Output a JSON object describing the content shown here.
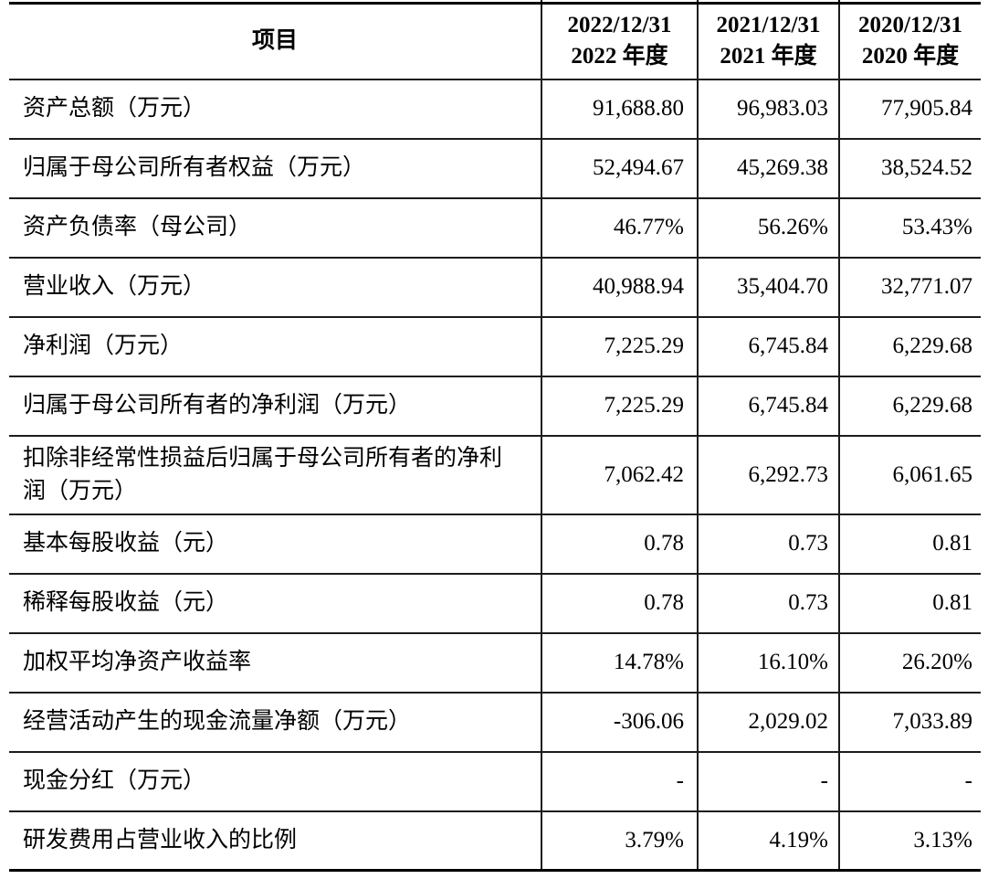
{
  "style": {
    "background": "#ffffff",
    "text_color": "#000000",
    "rule_color": "#1c1c1c"
  },
  "table": {
    "header": {
      "item_column_label": "项目",
      "period_columns": [
        {
          "date": "2022/12/31",
          "period": "2022 年度"
        },
        {
          "date": "2021/12/31",
          "period": "2021 年度"
        },
        {
          "date": "2020/12/31",
          "period": "2020 年度"
        }
      ]
    },
    "rows": [
      {
        "label": "资产总额（万元）",
        "values": [
          "91,688.80",
          "96,983.03",
          "77,905.84"
        ]
      },
      {
        "label": "归属于母公司所有者权益（万元）",
        "values": [
          "52,494.67",
          "45,269.38",
          "38,524.52"
        ]
      },
      {
        "label": "资产负债率（母公司）",
        "values": [
          "46.77%",
          "56.26%",
          "53.43%"
        ]
      },
      {
        "label": "营业收入（万元）",
        "values": [
          "40,988.94",
          "35,404.70",
          "32,771.07"
        ]
      },
      {
        "label": "净利润（万元）",
        "values": [
          "7,225.29",
          "6,745.84",
          "6,229.68"
        ]
      },
      {
        "label": "归属于母公司所有者的净利润（万元）",
        "values": [
          "7,225.29",
          "6,745.84",
          "6,229.68"
        ]
      },
      {
        "label": "扣除非经常性损益后归属于母公司所有者的净利润（万元）",
        "values": [
          "7,062.42",
          "6,292.73",
          "6,061.65"
        ]
      },
      {
        "label": "基本每股收益（元）",
        "values": [
          "0.78",
          "0.73",
          "0.81"
        ]
      },
      {
        "label": "稀释每股收益（元）",
        "values": [
          "0.78",
          "0.73",
          "0.81"
        ]
      },
      {
        "label": "加权平均净资产收益率",
        "values": [
          "14.78%",
          "16.10%",
          "26.20%"
        ]
      },
      {
        "label": "经营活动产生的现金流量净额（万元）",
        "values": [
          "-306.06",
          "2,029.02",
          "7,033.89"
        ]
      },
      {
        "label": "现金分红（万元）",
        "values": [
          "-",
          "-",
          "-"
        ]
      },
      {
        "label": "研发费用占营业收入的比例",
        "values": [
          "3.79%",
          "4.19%",
          "3.13%"
        ]
      }
    ]
  }
}
